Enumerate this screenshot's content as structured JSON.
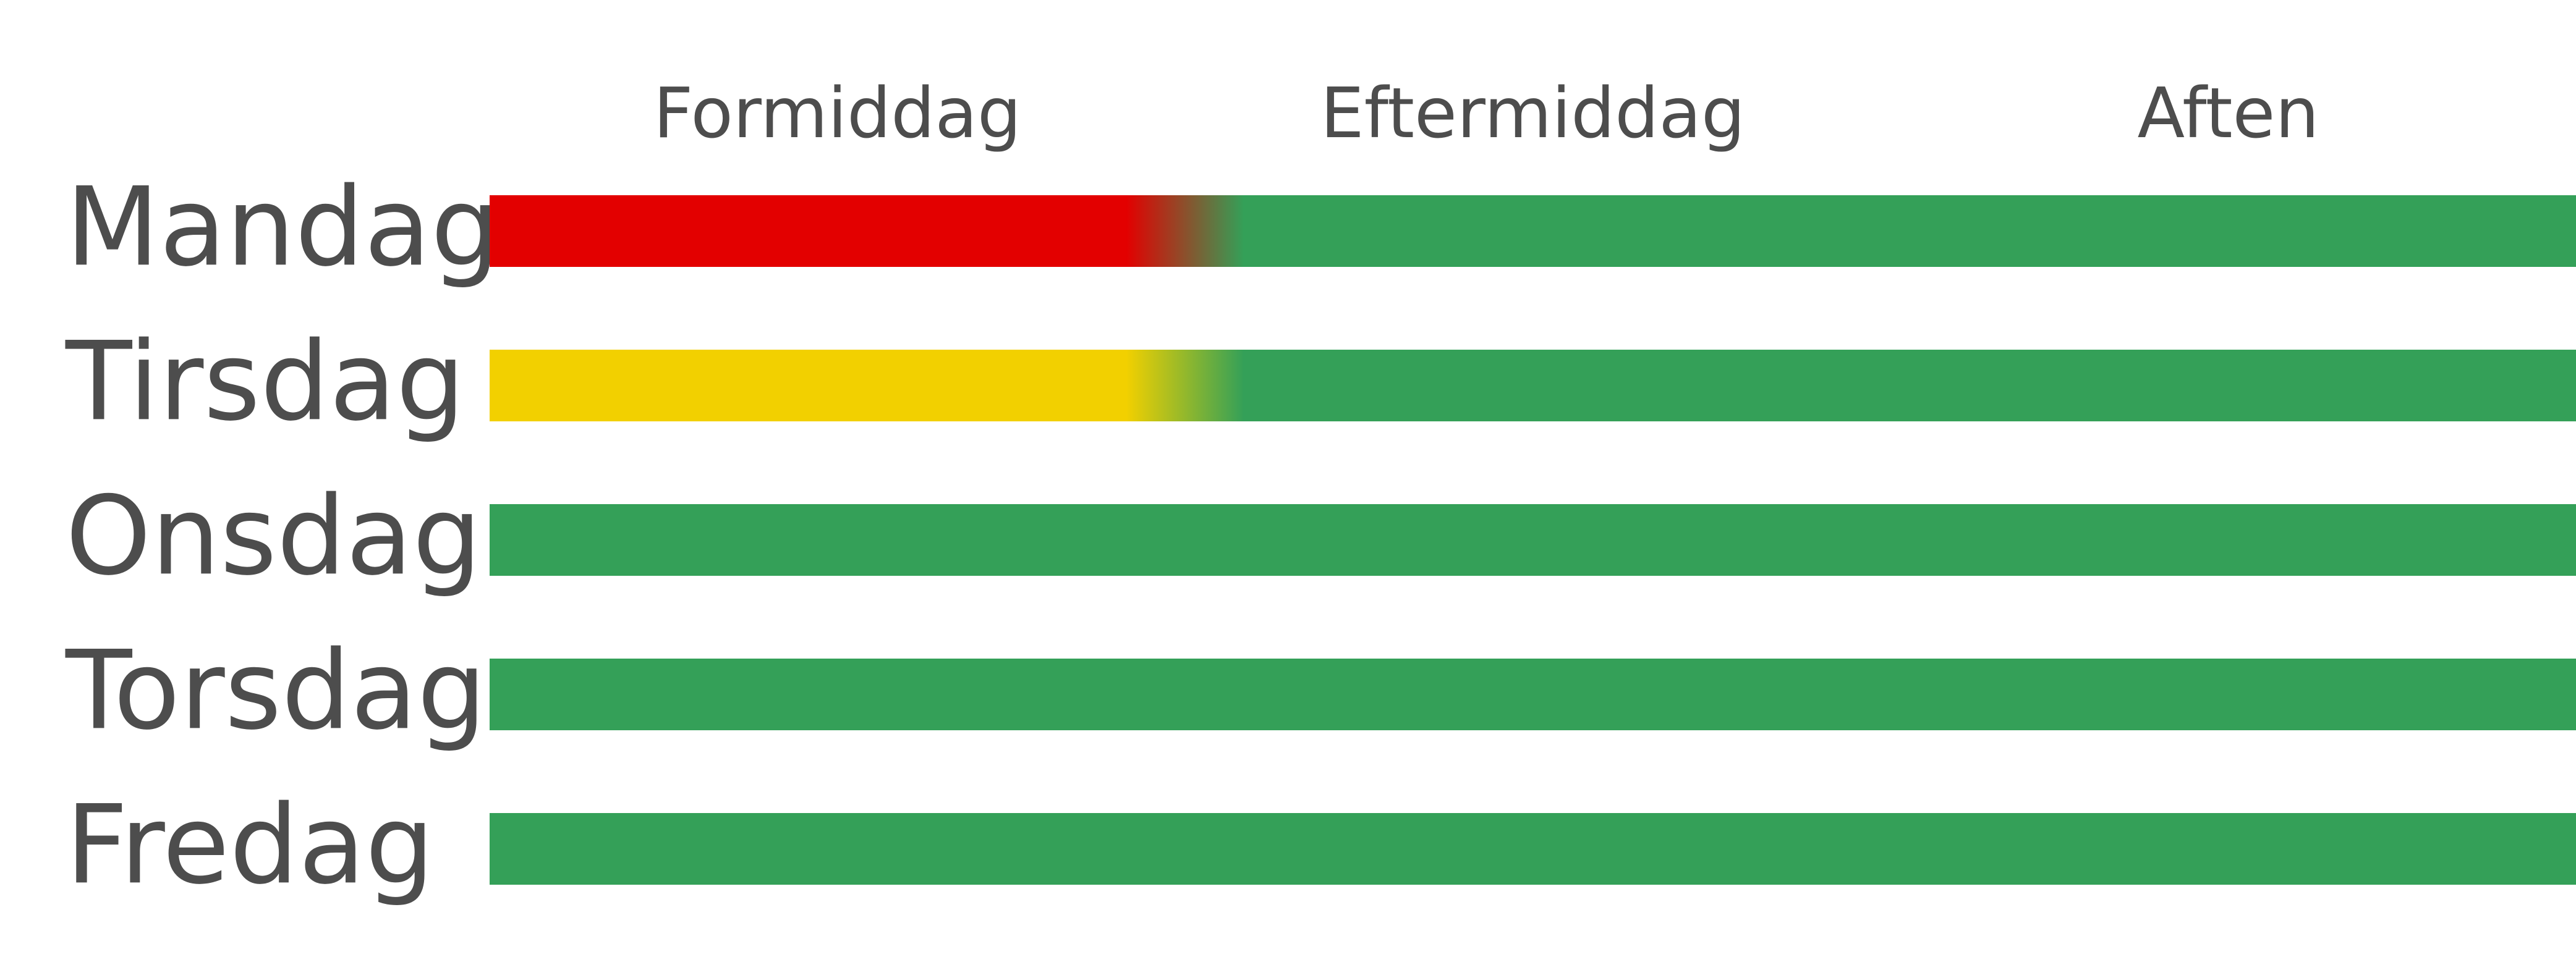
{
  "schedule": {
    "columns": [
      "Formiddag",
      "Eftermiddag",
      "Aften"
    ],
    "rows": [
      {
        "label": "Mandag",
        "colors": [
          "#e30000",
          "#34a058",
          "#34a058"
        ]
      },
      {
        "label": "Tirsdag",
        "colors": [
          "#f2d000",
          "#34a058",
          "#34a058"
        ]
      },
      {
        "label": "Onsdag",
        "colors": [
          "#34a058",
          "#34a058",
          "#34a058"
        ]
      },
      {
        "label": "Torsdag",
        "colors": [
          "#34a058",
          "#34a058",
          "#34a058"
        ]
      },
      {
        "label": "Fredag",
        "colors": [
          "#34a058",
          "#34a058",
          "#34a058"
        ]
      }
    ]
  }
}
